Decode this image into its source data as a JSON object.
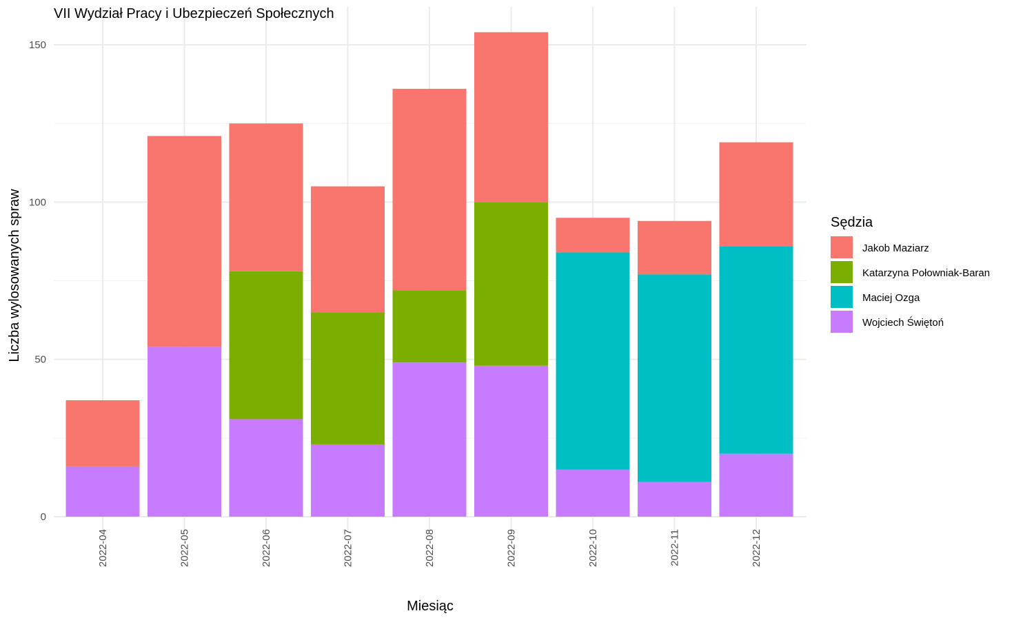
{
  "chart_data": {
    "type": "bar",
    "stacked": true,
    "title": "VII Wydział Pracy i Ubezpieczeń Społecznych",
    "xlabel": "Miesiąc",
    "ylabel": "Liczba wylosowanych spraw",
    "ylim": [
      0,
      160
    ],
    "yticks": [
      0,
      50,
      100,
      150
    ],
    "grid": true,
    "legend_position": "right",
    "legend_title": "Sędzia",
    "categories": [
      "2022-04",
      "2022-05",
      "2022-06",
      "2022-07",
      "2022-08",
      "2022-09",
      "2022-10",
      "2022-11",
      "2022-12"
    ],
    "series": [
      {
        "name": "Wojciech Świętoń",
        "color": "#C77CFF",
        "values": [
          16,
          54,
          31,
          23,
          49,
          48,
          15,
          11,
          20
        ]
      },
      {
        "name": "Maciej Ozga",
        "color": "#00BFC4",
        "values": [
          0,
          0,
          0,
          0,
          0,
          0,
          69,
          66,
          66
        ]
      },
      {
        "name": "Katarzyna Połowniak-Baran",
        "color": "#7CAE00",
        "values": [
          0,
          0,
          47,
          42,
          23,
          52,
          0,
          0,
          0
        ]
      },
      {
        "name": "Jakob Maziarz",
        "color": "#F8766D",
        "values": [
          21,
          67,
          47,
          40,
          64,
          54,
          11,
          17,
          33
        ]
      }
    ],
    "legend_order": [
      "Jakob Maziarz",
      "Katarzyna Połowniak-Baran",
      "Maciej Ozga",
      "Wojciech Świętoń"
    ]
  }
}
